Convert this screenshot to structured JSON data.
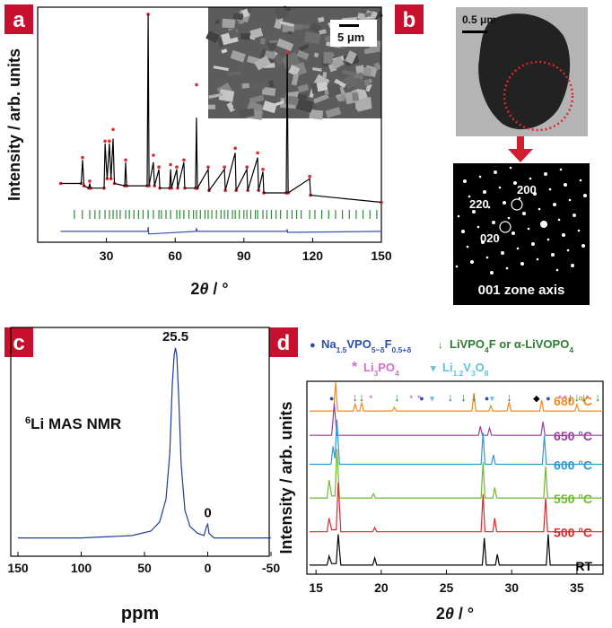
{
  "panel_labels": [
    "a",
    "b",
    "c",
    "d"
  ],
  "micrographs": {
    "sem_scale": "5 μm",
    "tem_scale": "0.5 μm",
    "spots": [
      "200",
      "220",
      "020"
    ],
    "zone": "001 zone axis"
  },
  "chart_data": [
    {
      "type": "line",
      "xlabel_parts": [
        "2",
        "θ",
        " / °"
      ],
      "ylabel": "Intensity / arb. units",
      "xlim": [
        0,
        150
      ],
      "xticks": [
        30,
        60,
        90,
        120,
        150
      ],
      "ylim": [
        0,
        100
      ],
      "series": [
        {
          "style": "dots",
          "color": "#e8262d",
          "x": [
            10,
            19,
            19.6,
            20.2,
            22.3,
            22.7,
            23.1,
            29,
            29.4,
            30.3,
            31.3,
            32,
            32.9,
            33.5,
            38,
            38.4,
            38.8,
            47.8,
            48.2,
            48.6,
            50.5,
            51,
            52.9,
            53.3,
            57.6,
            58,
            58.4,
            60.7,
            61.1,
            63.8,
            64.2,
            68.9,
            69.3,
            69.7,
            74.4,
            74.8,
            81.5,
            81.9,
            86.2,
            86.6,
            91.3,
            91.7,
            96,
            96.4,
            98.3,
            98.7,
            108.5,
            108.9,
            109.3,
            118.7,
            119.1,
            150
          ],
          "values": [
            25,
            25,
            36,
            24,
            23,
            26,
            23,
            23,
            43,
            27,
            43,
            27,
            48,
            25,
            24,
            35,
            24,
            24,
            97,
            24,
            37,
            24,
            32,
            23,
            23,
            33,
            23,
            32,
            23,
            35,
            23,
            23,
            67,
            23,
            32,
            22,
            32,
            22,
            40,
            22,
            32,
            22,
            38,
            22,
            31,
            21,
            21,
            81,
            21,
            28,
            20,
            17
          ]
        },
        {
          "style": "line",
          "color": "#000000",
          "x": [
            10,
            19,
            19.6,
            20.2,
            22.3,
            22.7,
            23.1,
            29,
            29.4,
            30.3,
            31.3,
            32,
            32.9,
            33.5,
            38,
            38.4,
            38.8,
            47.8,
            48.2,
            48.6,
            50.5,
            51,
            52.9,
            53.3,
            57.6,
            58,
            58.4,
            60.7,
            61.1,
            63.8,
            64.2,
            68.9,
            69.3,
            69.7,
            74.4,
            74.8,
            81.5,
            81.9,
            86.2,
            86.6,
            91.3,
            91.7,
            96,
            96.4,
            98.3,
            98.7,
            108.5,
            108.9,
            109.3,
            118.7,
            119.1,
            150
          ],
          "values": [
            25,
            25,
            35,
            24,
            23,
            25,
            23,
            23,
            42,
            27,
            42,
            27,
            44,
            25,
            24,
            34,
            24,
            24,
            97,
            24,
            34,
            24,
            31,
            23,
            23,
            31,
            23,
            31,
            23,
            34,
            23,
            23,
            53,
            23,
            31,
            22,
            31,
            22,
            38,
            22,
            31,
            22,
            36,
            22,
            30,
            21,
            21,
            80,
            21,
            27,
            20,
            17
          ]
        },
        {
          "style": "line",
          "color": "#3a50b4",
          "x": [
            10,
            48,
            48.2,
            48.5,
            69,
            69.3,
            69.6,
            108.7,
            108.9,
            109.1,
            150
          ],
          "values": [
            4.6,
            4.6,
            6.5,
            3.5,
            4.6,
            6,
            4.6,
            4.6,
            5.5,
            4.2,
            4.6
          ]
        }
      ],
      "reflections": {
        "color": "#2e8b3a",
        "x": [
          16,
          19.5,
          22.7,
          25,
          27,
          29.4,
          31.3,
          32.9,
          34.5,
          36,
          38.4,
          40,
          42,
          44,
          46,
          48.2,
          50.5,
          52.9,
          54,
          56,
          58,
          60.7,
          62,
          63.8,
          66,
          68,
          69.3,
          71,
          73,
          74.4,
          76,
          78,
          80,
          81.5,
          83,
          85,
          86.2,
          88,
          90,
          91.3,
          93,
          95,
          96,
          98.3,
          100,
          102,
          104,
          106,
          108.9,
          111,
          113,
          115,
          118.7,
          121,
          124,
          127,
          130,
          133,
          136,
          139,
          142,
          145,
          148
        ]
      }
    },
    {
      "type": "line",
      "xlabel": "ppm",
      "xlim": [
        150,
        -50
      ],
      "xticks": [
        150,
        100,
        50,
        0,
        -50
      ],
      "ylim": [
        0,
        100
      ],
      "series": [
        {
          "style": "line",
          "color": "#1f3c99",
          "x": [
            150,
            100,
            60,
            45,
            38,
            33,
            30,
            28,
            26.5,
            25.5,
            24.5,
            23,
            21,
            18,
            14,
            8,
            3,
            1,
            0,
            -1,
            -5,
            -50
          ],
          "values": [
            8,
            8,
            9,
            11,
            15,
            25,
            45,
            75,
            88,
            91,
            88,
            70,
            40,
            20,
            13,
            10,
            9,
            13,
            14,
            10,
            8,
            8
          ]
        }
      ],
      "peak_labels": [
        25.5,
        0
      ],
      "annotation": {
        "isotope": "6",
        "text": "Li MAS NMR"
      }
    },
    {
      "type": "line",
      "xlabel_parts": [
        "2",
        "θ",
        " / °"
      ],
      "ylabel": "Intensity / arb. units",
      "xlim": [
        14.3,
        37
      ],
      "xticks": [
        15,
        20,
        25,
        30,
        35
      ],
      "ylim": [
        0,
        100
      ],
      "series": [
        {
          "name": "680 °C",
          "color": "#f08a24",
          "x": [
            14.5,
            16.35,
            16.5,
            16.65,
            17.85,
            18.0,
            18.15,
            18.35,
            18.5,
            18.65,
            20.85,
            21.0,
            21.15,
            26.95,
            27.1,
            27.25,
            28.25,
            28.4,
            28.55,
            29.65,
            29.8,
            29.95,
            32.15,
            32.3,
            32.45,
            34.85,
            35.0,
            35.15,
            37
          ],
          "values": [
            84.6,
            84.6,
            99.5,
            84.6,
            84.6,
            88.3,
            84.6,
            84.6,
            89,
            84.6,
            84.6,
            86.5,
            84.6,
            84.6,
            93.9,
            84.6,
            84.6,
            87.4,
            84.6,
            84.6,
            89.3,
            84.6,
            84.6,
            90.2,
            84.6,
            84.6,
            88,
            84.6,
            84.6
          ]
        },
        {
          "name": "650 °C",
          "color": "#9b3f9b",
          "x": [
            14.5,
            16.2,
            16.4,
            16.6,
            27.45,
            27.6,
            27.75,
            28.15,
            28.3,
            28.45,
            32.25,
            32.4,
            32.55,
            37
          ],
          "values": [
            72,
            72,
            88.3,
            72,
            72,
            76.7,
            72,
            72,
            75.7,
            72,
            72,
            79,
            72,
            72
          ]
        },
        {
          "name": "600 °C",
          "color": "#2d9ad6",
          "x": [
            14.5,
            16.15,
            16.3,
            16.45,
            16.6,
            16.8,
            27.65,
            27.8,
            27.95,
            28.45,
            28.6,
            28.75,
            32.35,
            32.5,
            32.65,
            37
          ],
          "values": [
            57,
            57,
            66.3,
            60,
            80.2,
            57,
            57,
            73.3,
            57,
            57,
            61.7,
            57,
            57,
            71.9,
            57,
            57
          ]
        },
        {
          "name": "550 °C",
          "color": "#6fba2c",
          "x": [
            14.5,
            15.85,
            16.0,
            16.2,
            16.45,
            16.6,
            16.8,
            19.25,
            19.4,
            19.55,
            27.65,
            27.8,
            27.95,
            28.55,
            28.7,
            28.85,
            32.45,
            32.6,
            32.75,
            37
          ],
          "values": [
            39.5,
            39.5,
            48.8,
            40.5,
            40.5,
            65,
            39.5,
            39.5,
            41.8,
            39.5,
            39.5,
            58,
            39.5,
            39.5,
            45,
            39.5,
            39.5,
            55.8,
            39.5,
            39.5
          ]
        },
        {
          "name": "500 °C",
          "color": "#e0262b",
          "x": [
            14.5,
            15.85,
            16.0,
            16.2,
            16.55,
            16.7,
            16.9,
            19.35,
            19.5,
            19.65,
            27.65,
            27.8,
            27.95,
            28.55,
            28.7,
            28.85,
            32.45,
            32.6,
            32.75,
            37
          ],
          "values": [
            22,
            22,
            29,
            23,
            23,
            47.6,
            22,
            22,
            24.3,
            22,
            22,
            41.5,
            22,
            22,
            29,
            22,
            22,
            39.7,
            22,
            22
          ]
        },
        {
          "name": "RT",
          "color": "#000000",
          "x": [
            14.5,
            15.85,
            16.0,
            16.2,
            16.55,
            16.7,
            16.9,
            19.35,
            19.5,
            19.65,
            27.75,
            27.9,
            28.05,
            28.75,
            28.9,
            29.05,
            32.65,
            32.8,
            32.95,
            37
          ],
          "values": [
            4.7,
            4.7,
            9.4,
            5.5,
            5.5,
            20.7,
            4.7,
            4.7,
            8.4,
            4.7,
            4.7,
            18.7,
            4.7,
            4.7,
            10.3,
            4.7,
            4.7,
            20.7,
            4.7,
            4.7
          ]
        }
      ],
      "phase_markers": [
        {
          "symbol": "●",
          "color": "#2a4fb0",
          "label_parts": [
            "Na",
            "1.5",
            "VPO",
            "5−δ",
            "F",
            "0.5+δ"
          ],
          "x": [
            16.2,
            23.1,
            28.1,
            32.8
          ]
        },
        {
          "symbol": "↓",
          "color": "#2e7d32",
          "label_parts": [
            "LiVPO",
            "4",
            "F or α-LiVOPO",
            "4"
          ],
          "x": [
            18.0,
            18.5,
            21.2,
            25.3,
            26.3,
            27.1,
            29.8,
            34.5,
            35.0,
            35.5,
            36.6
          ]
        },
        {
          "symbol": "*",
          "color": "#d66ec9",
          "label_parts": [
            "Li",
            "3",
            "PO",
            "4"
          ],
          "x": [
            19.2,
            22.3,
            22.9,
            33.7,
            34.1,
            35.8
          ]
        },
        {
          "symbol": "▾",
          "color": "#5bc3dc",
          "label_parts": [
            "Li",
            "1.2",
            "V",
            "3",
            "O",
            "8"
          ],
          "x": [
            23.9,
            28.5
          ]
        },
        {
          "symbol": "◆",
          "color": "#000000",
          "x": [
            31.9
          ]
        }
      ]
    }
  ]
}
